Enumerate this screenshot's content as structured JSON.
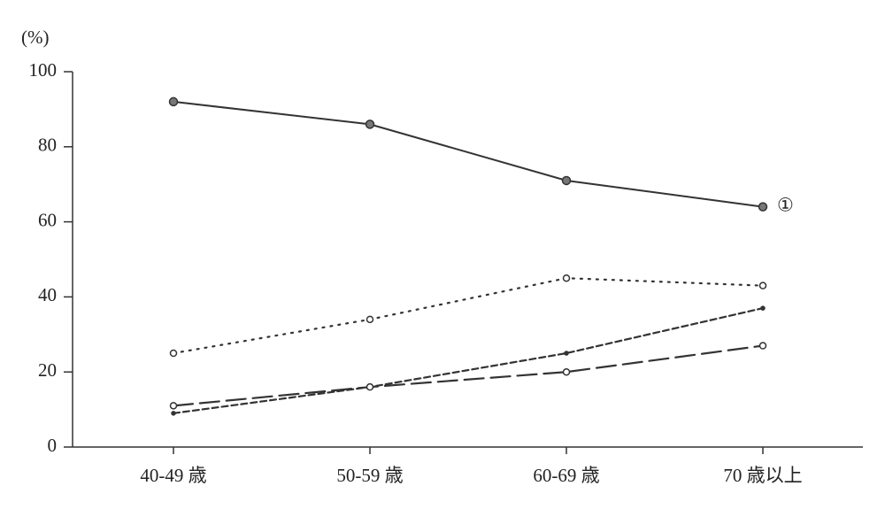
{
  "chart_data": {
    "type": "line",
    "y_label": "(%)",
    "categories": [
      "40-49 歳",
      "50-59 歳",
      "60-69 歳",
      "70 歳以上"
    ],
    "ylim": [
      0,
      100
    ],
    "yticks": [
      0,
      20,
      40,
      60,
      80,
      100
    ],
    "series": [
      {
        "name": "①",
        "color": "#333333",
        "style": "solid",
        "marker": "filled",
        "values": [
          92,
          86,
          71,
          64
        ]
      },
      {
        "color": "#333333",
        "style": "dotted",
        "marker": "open",
        "values": [
          25,
          34,
          45,
          43
        ]
      },
      {
        "color": "#333333",
        "style": "dashed",
        "marker": "small",
        "values": [
          9,
          16,
          25,
          37
        ]
      },
      {
        "color": "#333333",
        "style": "longdash",
        "marker": "open",
        "values": [
          11,
          16,
          20,
          27
        ]
      }
    ]
  }
}
